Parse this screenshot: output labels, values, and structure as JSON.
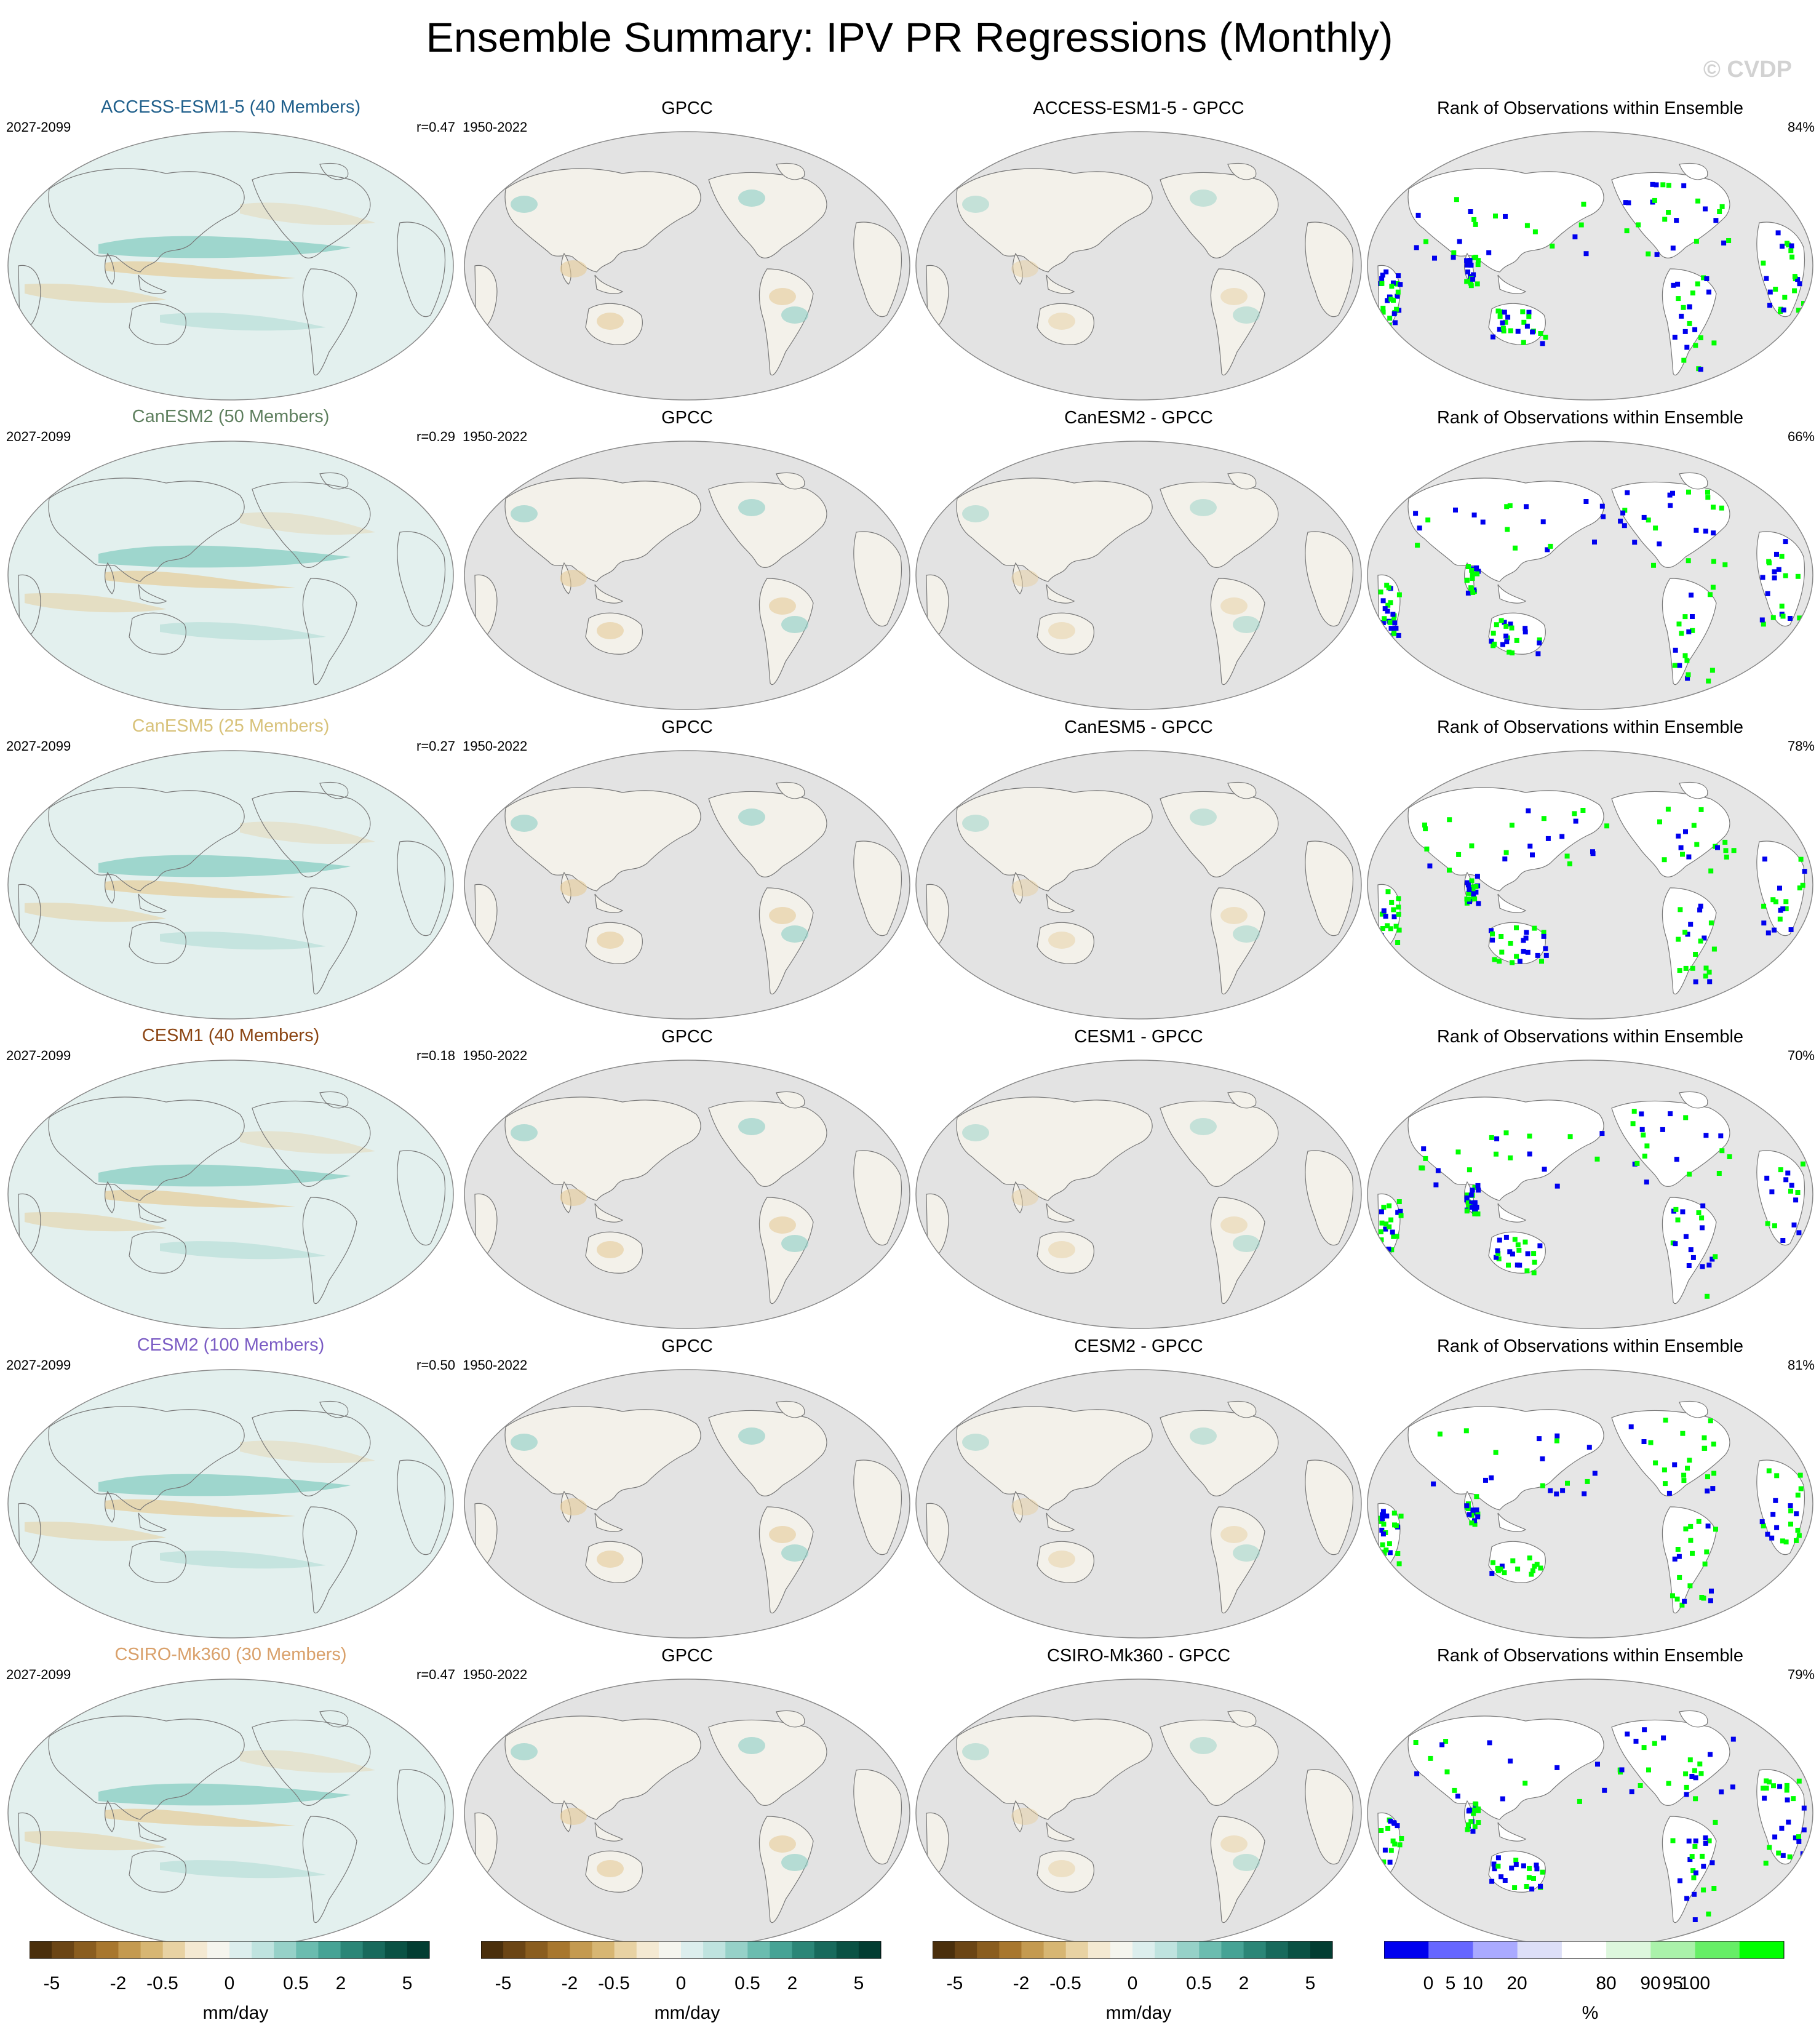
{
  "title": "Ensemble Summary: IPV PR Regressions (Monthly)",
  "copyright": "© CVDP",
  "rows": [
    {
      "model": "ACCESS-ESM1-5 (40 Members)",
      "model_color": "#1f5f8b",
      "period": "2027-2099",
      "r": "r=0.47",
      "obs_title": "GPCC",
      "obs_period": "1950-2022",
      "diff_title": "ACCESS-ESM1-5 - GPCC",
      "rank_title": "Rank of Observations within Ensemble",
      "rank_pct": "84%"
    },
    {
      "model": "CanESM2 (50 Members)",
      "model_color": "#5e7f5e",
      "period": "2027-2099",
      "r": "r=0.29",
      "obs_title": "GPCC",
      "obs_period": "1950-2022",
      "diff_title": "CanESM2 - GPCC",
      "rank_title": "Rank of Observations within Ensemble",
      "rank_pct": "66%"
    },
    {
      "model": "CanESM5 (25 Members)",
      "model_color": "#d8c27a",
      "period": "2027-2099",
      "r": "r=0.27",
      "obs_title": "GPCC",
      "obs_period": "1950-2022",
      "diff_title": "CanESM5 - GPCC",
      "rank_title": "Rank of Observations within Ensemble",
      "rank_pct": "78%"
    },
    {
      "model": "CESM1 (40 Members)",
      "model_color": "#8b4513",
      "period": "2027-2099",
      "r": "r=0.18",
      "obs_title": "GPCC",
      "obs_period": "1950-2022",
      "diff_title": "CESM1 - GPCC",
      "rank_title": "Rank of Observations within Ensemble",
      "rank_pct": "70%"
    },
    {
      "model": "CESM2 (100 Members)",
      "model_color": "#7b5cc4",
      "period": "2027-2099",
      "r": "r=0.50",
      "obs_title": "GPCC",
      "obs_period": "1950-2022",
      "diff_title": "CESM2 - GPCC",
      "rank_title": "Rank of Observations within Ensemble",
      "rank_pct": "81%"
    },
    {
      "model": "CSIRO-Mk360 (30 Members)",
      "model_color": "#d9a06a",
      "period": "2027-2099",
      "r": "r=0.47",
      "obs_title": "GPCC",
      "obs_period": "1950-2022",
      "diff_title": "CSIRO-Mk360 - GPCC",
      "rank_title": "Rank of Observations within Ensemble",
      "rank_pct": "79%"
    }
  ],
  "colorbar_pr": {
    "unit": "mm/day",
    "ticks": [
      "-5",
      "-2",
      "-0.5",
      "0",
      "0.5",
      "2",
      "5"
    ],
    "colors": [
      "#4a2f0c",
      "#6b4515",
      "#8a5d1f",
      "#a8772e",
      "#c49a50",
      "#d7b673",
      "#e8d2a3",
      "#f4e9d2",
      "#f5f5ee",
      "#dceeed",
      "#bfe3df",
      "#96d1c8",
      "#6bbcaf",
      "#46a395",
      "#2b8677",
      "#186a5c",
      "#0a5244",
      "#033d32"
    ]
  },
  "colorbar_rank": {
    "unit": "%",
    "ticks": [
      "0",
      "5",
      "10",
      "20",
      "80",
      "90",
      "95",
      "100"
    ],
    "colors": [
      "#0000ee",
      "#6666ff",
      "#aaaaff",
      "#dddff8",
      "#ffffff",
      "#ddf7dd",
      "#aaf2aa",
      "#66ee66",
      "#00ff00"
    ]
  },
  "map_colors": {
    "ocean_model": "#e3f0ee",
    "land_fill": "#e3e3e3",
    "coast": "#777777",
    "wet": "#8ccfc4",
    "dry": "#e6cc98",
    "rank_low": "#0000ee",
    "rank_high": "#00ff00"
  }
}
